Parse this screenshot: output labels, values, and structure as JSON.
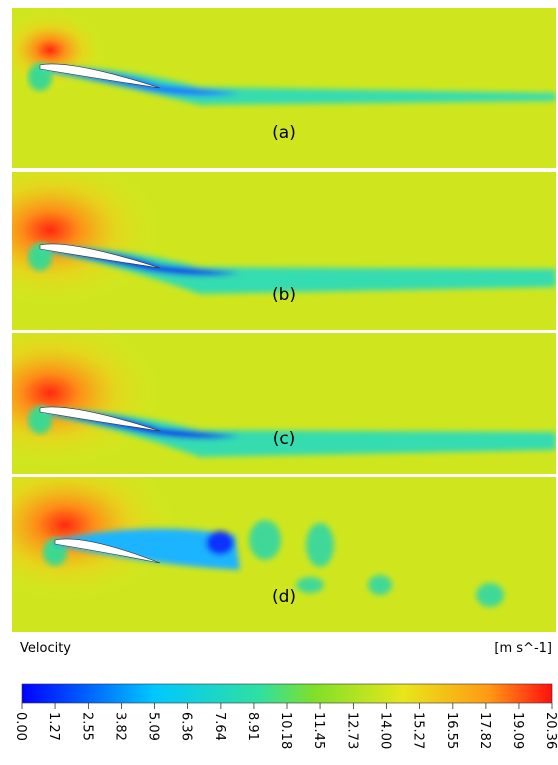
{
  "panels": [
    {
      "label": "(a)"
    },
    {
      "label": "(b)"
    },
    {
      "label": "(c)"
    },
    {
      "label": "(d)"
    }
  ],
  "colorbar": {
    "title": "Velocity",
    "unit": "[m s^-1]",
    "range": [
      0,
      20.36
    ],
    "ticks": [
      {
        "value": 0,
        "label": "0.00"
      },
      {
        "value": 1.27,
        "label": "1.27"
      },
      {
        "value": 2.55,
        "label": "2.55"
      },
      {
        "value": 3.82,
        "label": "3.82"
      },
      {
        "value": 5.09,
        "label": "5.09"
      },
      {
        "value": 6.36,
        "label": "6.36"
      },
      {
        "value": 7.64,
        "label": "7.64"
      },
      {
        "value": 8.91,
        "label": "8.91"
      },
      {
        "value": 10.18,
        "label": "10.18"
      },
      {
        "value": 11.45,
        "label": "11.45"
      },
      {
        "value": 12.73,
        "label": "12.73"
      },
      {
        "value": 14,
        "label": "14.00"
      },
      {
        "value": 15.27,
        "label": "15.27"
      },
      {
        "value": 16.55,
        "label": "16.55"
      },
      {
        "value": 17.82,
        "label": "17.82"
      },
      {
        "value": 19.09,
        "label": "19.09"
      },
      {
        "value": 20.36,
        "label": "20.36"
      }
    ]
  }
}
